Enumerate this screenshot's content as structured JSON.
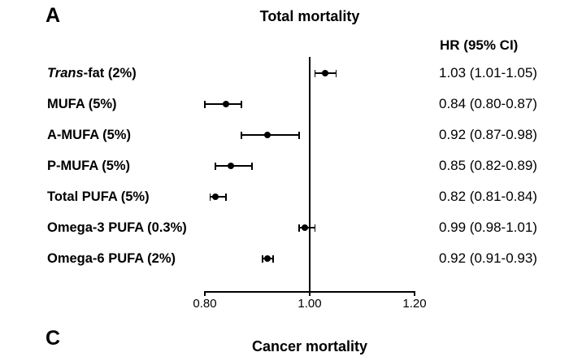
{
  "panel": {
    "label": "A",
    "hr_header": "HR (95% CI)"
  },
  "next_panel": {
    "label": "C",
    "title": "Cancer mortality"
  },
  "colors": {
    "marker": "#000000",
    "line": "#000000",
    "text": "#000000",
    "background": "#ffffff"
  },
  "chart_data": {
    "type": "forest",
    "title": "Total mortality",
    "xlabel": "",
    "ylabel": "",
    "xlim": [
      0.8,
      1.2
    ],
    "xticks": [
      0.8,
      1.0,
      1.2
    ],
    "xtick_labels": [
      "0.80",
      "1.00",
      "1.20"
    ],
    "reference_line": 1.0,
    "legend": "none",
    "grid": false,
    "rows": [
      {
        "label": "Trans-fat (2%)",
        "italic_prefix": "Trans",
        "hr": 1.03,
        "lo": 1.01,
        "hi": 1.05,
        "hr_text": "1.03 (1.01-1.05)"
      },
      {
        "label": "MUFA (5%)",
        "hr": 0.84,
        "lo": 0.8,
        "hi": 0.87,
        "hr_text": "0.84 (0.80-0.87)"
      },
      {
        "label": "A-MUFA (5%)",
        "hr": 0.92,
        "lo": 0.87,
        "hi": 0.98,
        "hr_text": "0.92 (0.87-0.98)"
      },
      {
        "label": "P-MUFA (5%)",
        "hr": 0.85,
        "lo": 0.82,
        "hi": 0.89,
        "hr_text": "0.85 (0.82-0.89)"
      },
      {
        "label": "Total PUFA (5%)",
        "hr": 0.82,
        "lo": 0.81,
        "hi": 0.84,
        "hr_text": "0.82 (0.81-0.84)"
      },
      {
        "label": "Omega-3 PUFA (0.3%)",
        "hr": 0.99,
        "lo": 0.98,
        "hi": 1.01,
        "hr_text": "0.99 (0.98-1.01)"
      },
      {
        "label": "Omega-6 PUFA (2%)",
        "hr": 0.92,
        "lo": 0.91,
        "hi": 0.93,
        "hr_text": "0.92 (0.91-0.93)"
      }
    ]
  }
}
